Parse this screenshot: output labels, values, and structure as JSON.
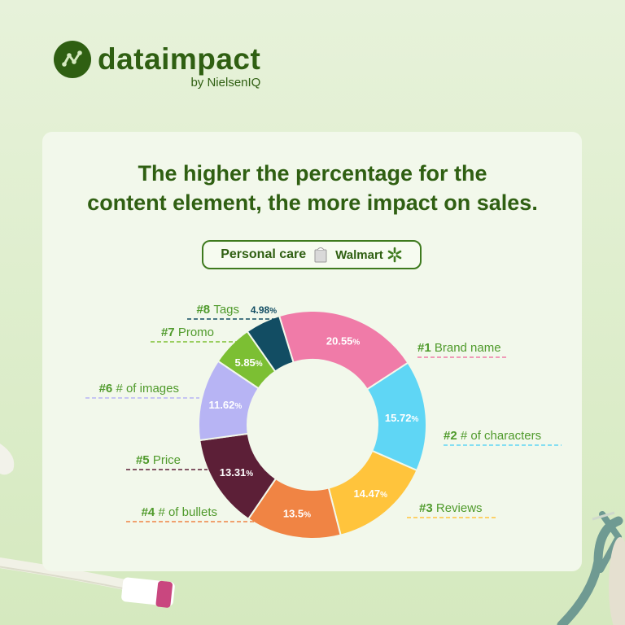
{
  "brand": {
    "name": "dataimpact",
    "sub": "by NielsenIQ"
  },
  "headline": {
    "line1": "The higher the percentage for the",
    "line2": "content element, the more impact on sales."
  },
  "filter": {
    "category": "Personal care",
    "retailer": "Walmart"
  },
  "colors": {
    "brand_green": "#2f5f12",
    "label_green": "#4f9a2b"
  },
  "chart_data": {
    "type": "pie",
    "style": "donut",
    "title": "The higher the percentage for the content element, the more impact on sales.",
    "value_suffix": "%",
    "slices": [
      {
        "rank": "#1",
        "name": "Brand name",
        "value": 20.55,
        "label": "20.55",
        "color": "#f07ba8"
      },
      {
        "rank": "#2",
        "name": "# of characters",
        "value": 15.72,
        "label": "15.72",
        "color": "#5fd6f5"
      },
      {
        "rank": "#3",
        "name": "Reviews",
        "value": 14.47,
        "label": "14.47",
        "color": "#ffc43c"
      },
      {
        "rank": "#4",
        "name": "# of bullets",
        "value": 13.5,
        "label": "13.5",
        "color": "#f08444"
      },
      {
        "rank": "#5",
        "name": "Price",
        "value": 13.31,
        "label": "13.31",
        "color": "#5c1f37"
      },
      {
        "rank": "#6",
        "name": "# of images",
        "value": 11.62,
        "label": "11.62",
        "color": "#b7b4f4"
      },
      {
        "rank": "#7",
        "name": "Promo",
        "value": 5.85,
        "label": "5.85",
        "color": "#7cbf33"
      },
      {
        "rank": "#8",
        "name": "Tags",
        "value": 4.98,
        "label": "4.98",
        "color": "#124d63"
      }
    ]
  }
}
